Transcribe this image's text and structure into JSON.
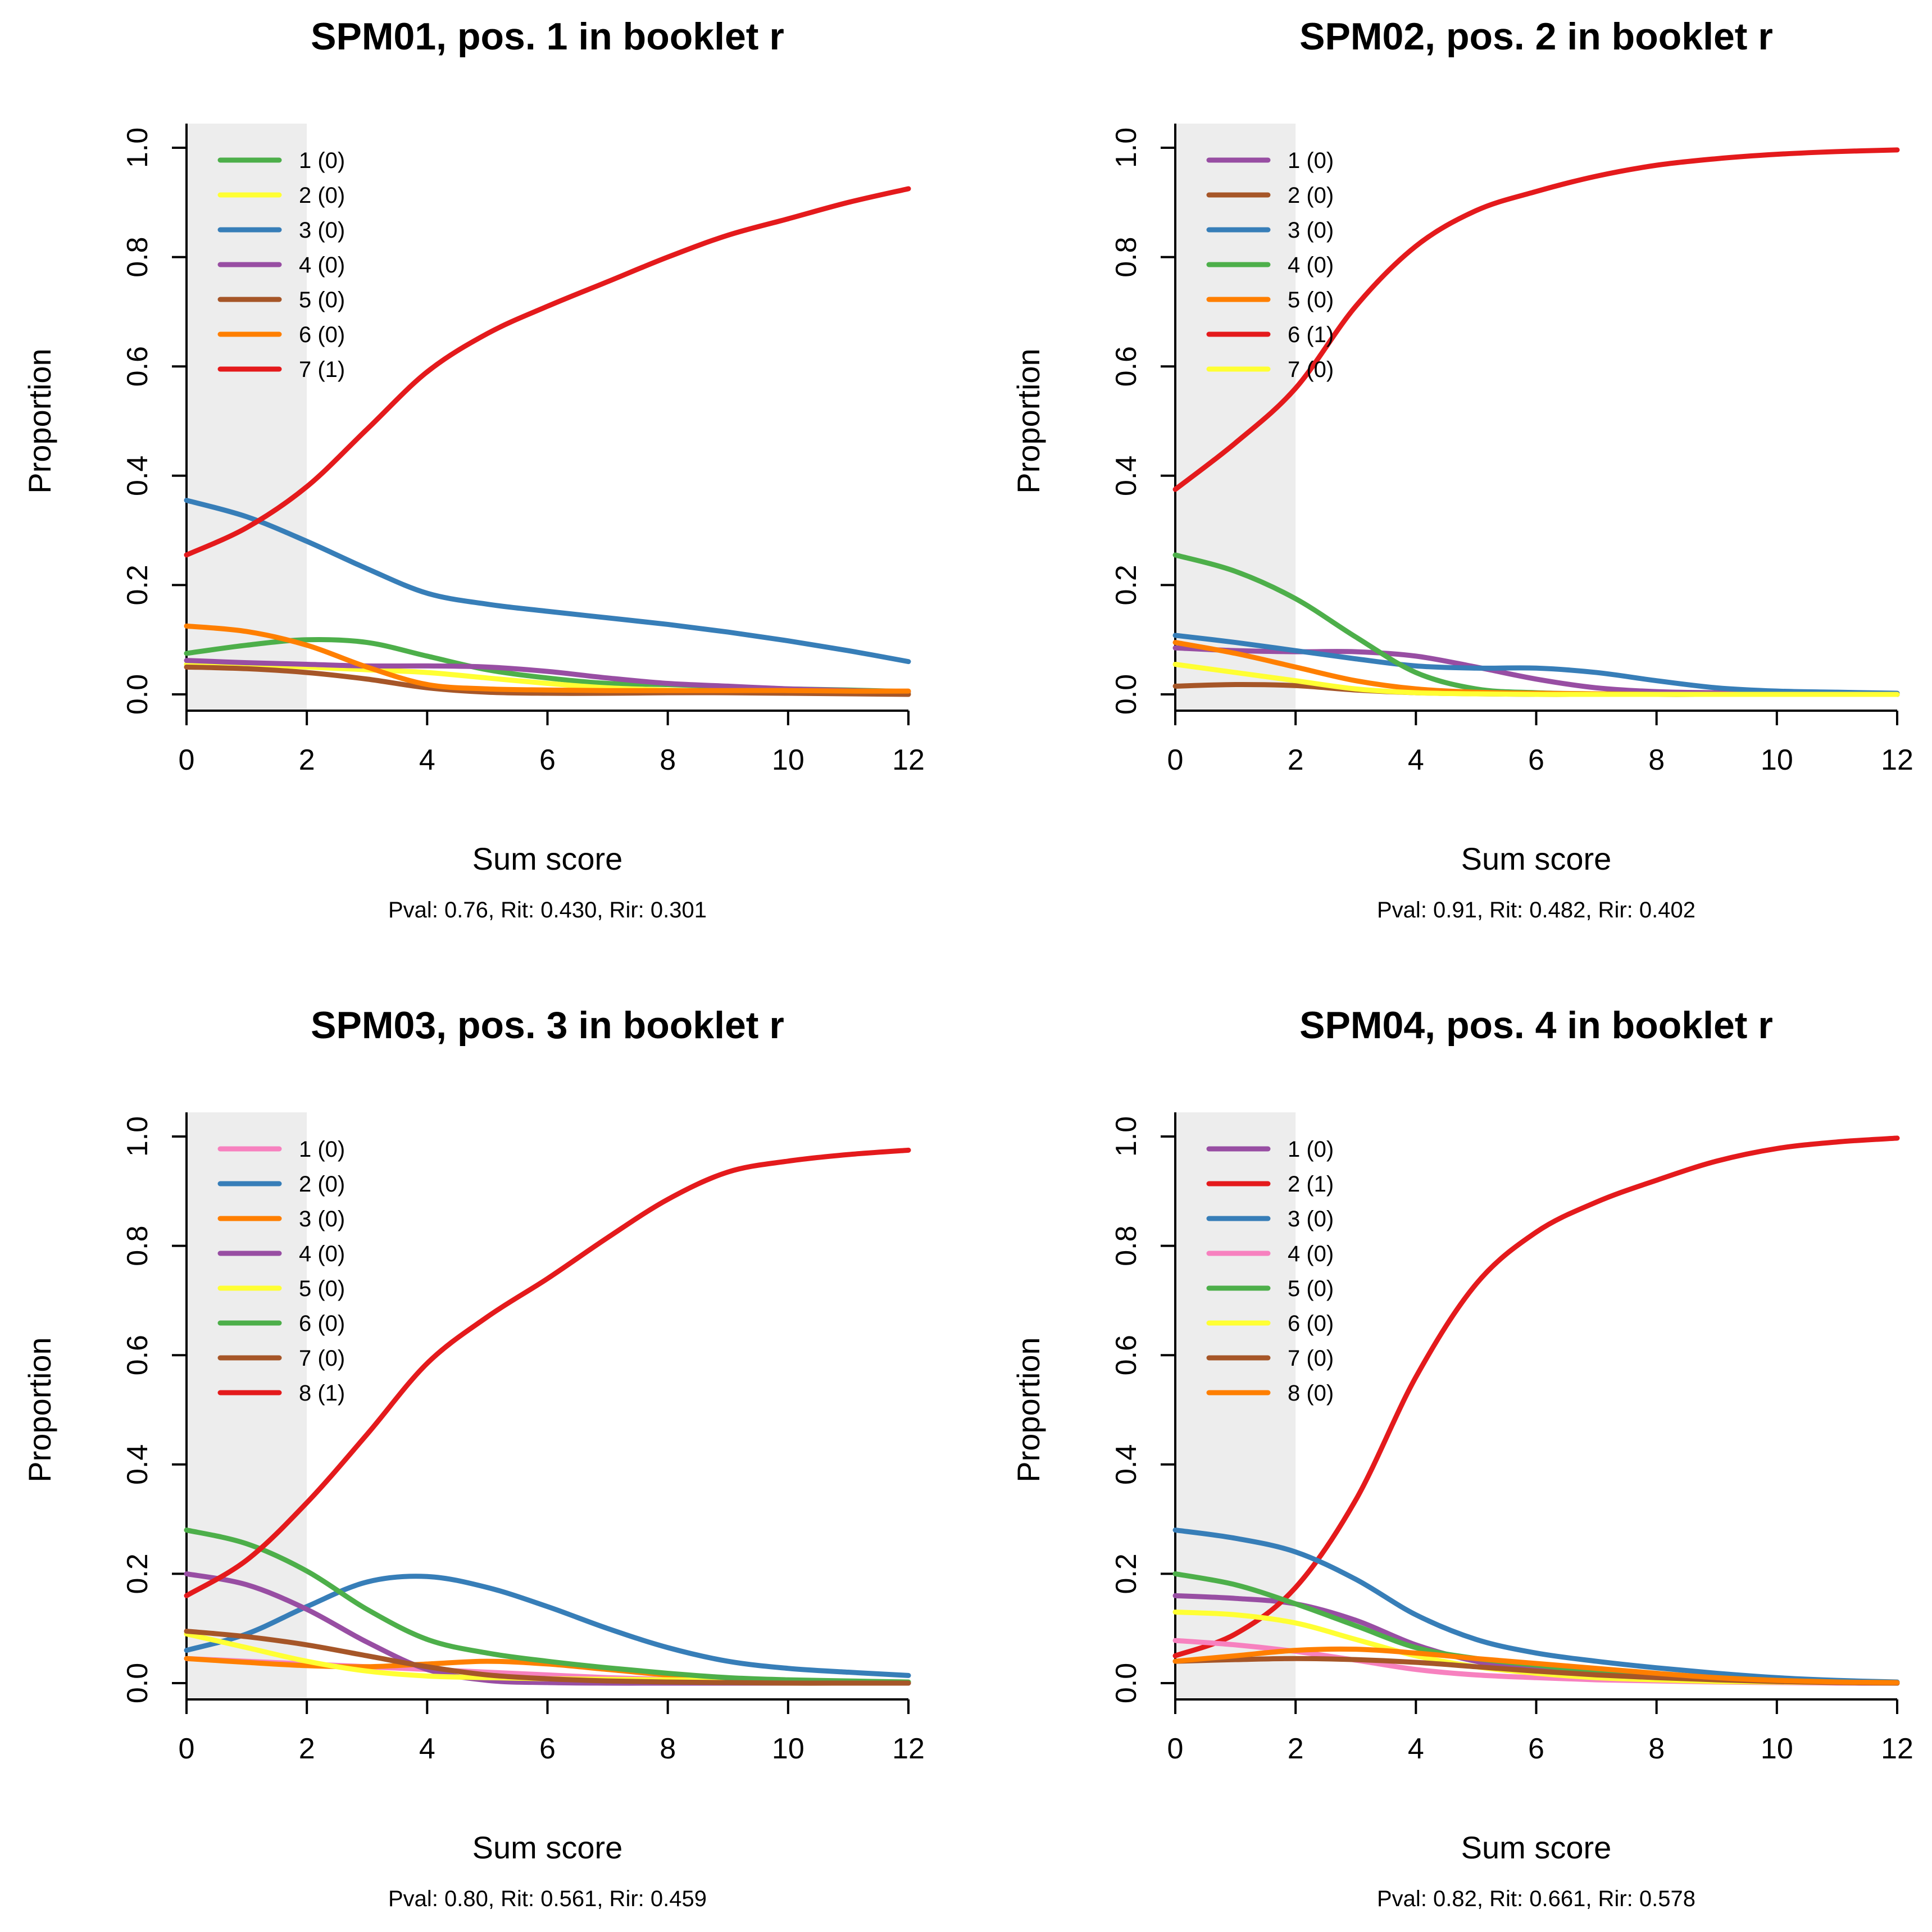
{
  "chart_data": [
    {
      "type": "line",
      "title": "SPM01, pos. 1 in booklet r",
      "xlabel": "Sum score",
      "ylabel": "Proportion",
      "stats": "Pval: 0.76, Rit: 0.430, Rir: 0.301",
      "xlim": [
        0,
        12
      ],
      "ylim": [
        0,
        1
      ],
      "xticks": [
        "0",
        "2",
        "4",
        "6",
        "8",
        "10",
        "12"
      ],
      "yticks": [
        "0.0",
        "0.2",
        "0.4",
        "0.6",
        "0.8",
        "1.0"
      ],
      "shaded_x_range": [
        0,
        2
      ],
      "x": [
        0,
        1,
        2,
        3,
        4,
        5,
        6,
        7,
        8,
        9,
        10,
        11,
        12
      ],
      "series": [
        {
          "name": "1 (0)",
          "color": "#4daf4a",
          "values": [
            0.075,
            0.09,
            0.1,
            0.095,
            0.07,
            0.045,
            0.03,
            0.02,
            0.018,
            0.014,
            0.01,
            0.008,
            0.005
          ]
        },
        {
          "name": "2 (0)",
          "color": "#ffff33",
          "values": [
            0.055,
            0.055,
            0.05,
            0.045,
            0.04,
            0.03,
            0.02,
            0.012,
            0.008,
            0.005,
            0.003,
            0.002,
            0.001
          ]
        },
        {
          "name": "3 (0)",
          "color": "#377eb8",
          "values": [
            0.355,
            0.325,
            0.28,
            0.23,
            0.185,
            0.165,
            0.152,
            0.14,
            0.128,
            0.114,
            0.098,
            0.08,
            0.06
          ]
        },
        {
          "name": "4 (0)",
          "color": "#984ea3",
          "values": [
            0.062,
            0.058,
            0.055,
            0.052,
            0.052,
            0.05,
            0.042,
            0.03,
            0.02,
            0.015,
            0.01,
            0.007,
            0.005
          ]
        },
        {
          "name": "5 (0)",
          "color": "#a65628",
          "values": [
            0.05,
            0.047,
            0.04,
            0.028,
            0.012,
            0.004,
            0.002,
            0.002,
            0.003,
            0.003,
            0.002,
            0.001,
            0.0
          ]
        },
        {
          "name": "6 (0)",
          "color": "#ff7f00",
          "values": [
            0.125,
            0.115,
            0.09,
            0.05,
            0.018,
            0.01,
            0.008,
            0.007,
            0.007,
            0.007,
            0.007,
            0.006,
            0.006
          ]
        },
        {
          "name": "7 (1)",
          "color": "#e41a1c",
          "values": [
            0.255,
            0.305,
            0.38,
            0.485,
            0.59,
            0.66,
            0.71,
            0.755,
            0.8,
            0.84,
            0.87,
            0.9,
            0.925
          ]
        }
      ]
    },
    {
      "type": "line",
      "title": "SPM02, pos. 2 in booklet r",
      "xlabel": "Sum score",
      "ylabel": "Proportion",
      "stats": "Pval: 0.91, Rit: 0.482, Rir: 0.402",
      "xlim": [
        0,
        12
      ],
      "ylim": [
        0,
        1
      ],
      "xticks": [
        "0",
        "2",
        "4",
        "6",
        "8",
        "10",
        "12"
      ],
      "yticks": [
        "0.0",
        "0.2",
        "0.4",
        "0.6",
        "0.8",
        "1.0"
      ],
      "shaded_x_range": [
        0,
        2
      ],
      "x": [
        0,
        1,
        2,
        3,
        4,
        5,
        6,
        7,
        8,
        9,
        10,
        11,
        12
      ],
      "series": [
        {
          "name": "1 (0)",
          "color": "#984ea3",
          "values": [
            0.085,
            0.08,
            0.078,
            0.078,
            0.07,
            0.05,
            0.028,
            0.012,
            0.005,
            0.003,
            0.002,
            0.001,
            0.0
          ]
        },
        {
          "name": "2 (0)",
          "color": "#a65628",
          "values": [
            0.015,
            0.018,
            0.016,
            0.008,
            0.003,
            0.001,
            0.0,
            0.0,
            0.0,
            0.0,
            0.0,
            0.0,
            0.0
          ]
        },
        {
          "name": "3 (0)",
          "color": "#377eb8",
          "values": [
            0.108,
            0.095,
            0.08,
            0.065,
            0.052,
            0.048,
            0.048,
            0.04,
            0.025,
            0.012,
            0.006,
            0.004,
            0.002
          ]
        },
        {
          "name": "4 (0)",
          "color": "#4daf4a",
          "values": [
            0.255,
            0.225,
            0.175,
            0.105,
            0.04,
            0.01,
            0.003,
            0.001,
            0.0,
            0.0,
            0.0,
            0.0,
            0.0
          ]
        },
        {
          "name": "5 (0)",
          "color": "#ff7f00",
          "values": [
            0.095,
            0.075,
            0.05,
            0.025,
            0.01,
            0.004,
            0.002,
            0.001,
            0.0,
            0.0,
            0.0,
            0.0,
            0.0
          ]
        },
        {
          "name": "6 (1)",
          "color": "#e41a1c",
          "values": [
            0.375,
            0.46,
            0.56,
            0.71,
            0.82,
            0.885,
            0.92,
            0.948,
            0.968,
            0.98,
            0.988,
            0.993,
            0.996
          ]
        },
        {
          "name": "7 (0)",
          "color": "#ffff33",
          "values": [
            0.055,
            0.04,
            0.025,
            0.01,
            0.003,
            0.001,
            0.0,
            0.0,
            0.0,
            0.0,
            0.0,
            0.0,
            0.0
          ]
        }
      ]
    },
    {
      "type": "line",
      "title": "SPM03, pos. 3 in booklet r",
      "xlabel": "Sum score",
      "ylabel": "Proportion",
      "stats": "Pval: 0.80, Rit: 0.561, Rir: 0.459",
      "xlim": [
        0,
        12
      ],
      "ylim": [
        0,
        1
      ],
      "xticks": [
        "0",
        "2",
        "4",
        "6",
        "8",
        "10",
        "12"
      ],
      "yticks": [
        "0.0",
        "0.2",
        "0.4",
        "0.6",
        "0.8",
        "1.0"
      ],
      "shaded_x_range": [
        0,
        2
      ],
      "x": [
        0,
        1,
        2,
        3,
        4,
        5,
        6,
        7,
        8,
        9,
        10,
        11,
        12
      ],
      "series": [
        {
          "name": "1 (0)",
          "color": "#f781bf",
          "values": [
            0.045,
            0.04,
            0.035,
            0.03,
            0.025,
            0.02,
            0.015,
            0.01,
            0.007,
            0.005,
            0.003,
            0.002,
            0.001
          ]
        },
        {
          "name": "2 (0)",
          "color": "#377eb8",
          "values": [
            0.06,
            0.09,
            0.14,
            0.185,
            0.195,
            0.175,
            0.14,
            0.1,
            0.065,
            0.04,
            0.027,
            0.02,
            0.014
          ]
        },
        {
          "name": "3 (0)",
          "color": "#ff7f00",
          "values": [
            0.045,
            0.038,
            0.032,
            0.03,
            0.035,
            0.04,
            0.035,
            0.025,
            0.015,
            0.008,
            0.004,
            0.002,
            0.001
          ]
        },
        {
          "name": "4 (0)",
          "color": "#984ea3",
          "values": [
            0.2,
            0.18,
            0.135,
            0.075,
            0.025,
            0.005,
            0.001,
            0.0,
            0.0,
            0.0,
            0.0,
            0.0,
            0.0
          ]
        },
        {
          "name": "5 (0)",
          "color": "#ffff33",
          "values": [
            0.09,
            0.065,
            0.04,
            0.022,
            0.013,
            0.01,
            0.008,
            0.007,
            0.006,
            0.005,
            0.004,
            0.003,
            0.002
          ]
        },
        {
          "name": "6 (0)",
          "color": "#4daf4a",
          "values": [
            0.28,
            0.255,
            0.205,
            0.135,
            0.08,
            0.055,
            0.04,
            0.028,
            0.018,
            0.01,
            0.006,
            0.004,
            0.002
          ]
        },
        {
          "name": "7 (0)",
          "color": "#a65628",
          "values": [
            0.095,
            0.085,
            0.07,
            0.05,
            0.03,
            0.015,
            0.008,
            0.004,
            0.002,
            0.001,
            0.0,
            0.0,
            0.0
          ]
        },
        {
          "name": "8 (1)",
          "color": "#e41a1c",
          "values": [
            0.16,
            0.225,
            0.33,
            0.455,
            0.585,
            0.67,
            0.74,
            0.815,
            0.885,
            0.935,
            0.955,
            0.967,
            0.975
          ]
        }
      ]
    },
    {
      "type": "line",
      "title": "SPM04, pos. 4 in booklet r",
      "xlabel": "Sum score",
      "ylabel": "Proportion",
      "stats": "Pval: 0.82, Rit: 0.661, Rir: 0.578",
      "xlim": [
        0,
        12
      ],
      "ylim": [
        0,
        1
      ],
      "xticks": [
        "0",
        "2",
        "4",
        "6",
        "8",
        "10",
        "12"
      ],
      "yticks": [
        "0.0",
        "0.2",
        "0.4",
        "0.6",
        "0.8",
        "1.0"
      ],
      "shaded_x_range": [
        0,
        2
      ],
      "x": [
        0,
        1,
        2,
        3,
        4,
        5,
        6,
        7,
        8,
        9,
        10,
        11,
        12
      ],
      "series": [
        {
          "name": "1 (0)",
          "color": "#984ea3",
          "values": [
            0.16,
            0.155,
            0.145,
            0.115,
            0.07,
            0.04,
            0.025,
            0.015,
            0.01,
            0.005,
            0.003,
            0.001,
            0.0
          ]
        },
        {
          "name": "2 (1)",
          "color": "#e41a1c",
          "values": [
            0.05,
            0.09,
            0.175,
            0.335,
            0.56,
            0.73,
            0.825,
            0.88,
            0.92,
            0.955,
            0.978,
            0.99,
            0.997
          ]
        },
        {
          "name": "3 (0)",
          "color": "#377eb8",
          "values": [
            0.28,
            0.265,
            0.24,
            0.19,
            0.125,
            0.08,
            0.055,
            0.04,
            0.028,
            0.018,
            0.01,
            0.005,
            0.002
          ]
        },
        {
          "name": "4 (0)",
          "color": "#f781bf",
          "values": [
            0.078,
            0.07,
            0.058,
            0.042,
            0.025,
            0.015,
            0.01,
            0.006,
            0.004,
            0.002,
            0.001,
            0.0,
            0.0
          ]
        },
        {
          "name": "5 (0)",
          "color": "#4daf4a",
          "values": [
            0.2,
            0.18,
            0.145,
            0.105,
            0.065,
            0.045,
            0.033,
            0.022,
            0.015,
            0.01,
            0.005,
            0.002,
            0.001
          ]
        },
        {
          "name": "6 (0)",
          "color": "#ffff33",
          "values": [
            0.13,
            0.125,
            0.11,
            0.08,
            0.05,
            0.03,
            0.018,
            0.01,
            0.006,
            0.003,
            0.002,
            0.001,
            0.0
          ]
        },
        {
          "name": "7 (0)",
          "color": "#a65628",
          "values": [
            0.04,
            0.043,
            0.045,
            0.043,
            0.038,
            0.03,
            0.022,
            0.015,
            0.01,
            0.006,
            0.003,
            0.001,
            0.0
          ]
        },
        {
          "name": "8 (0)",
          "color": "#ff7f00",
          "values": [
            0.04,
            0.05,
            0.06,
            0.062,
            0.055,
            0.045,
            0.036,
            0.027,
            0.018,
            0.01,
            0.005,
            0.002,
            0.001
          ]
        }
      ]
    }
  ]
}
